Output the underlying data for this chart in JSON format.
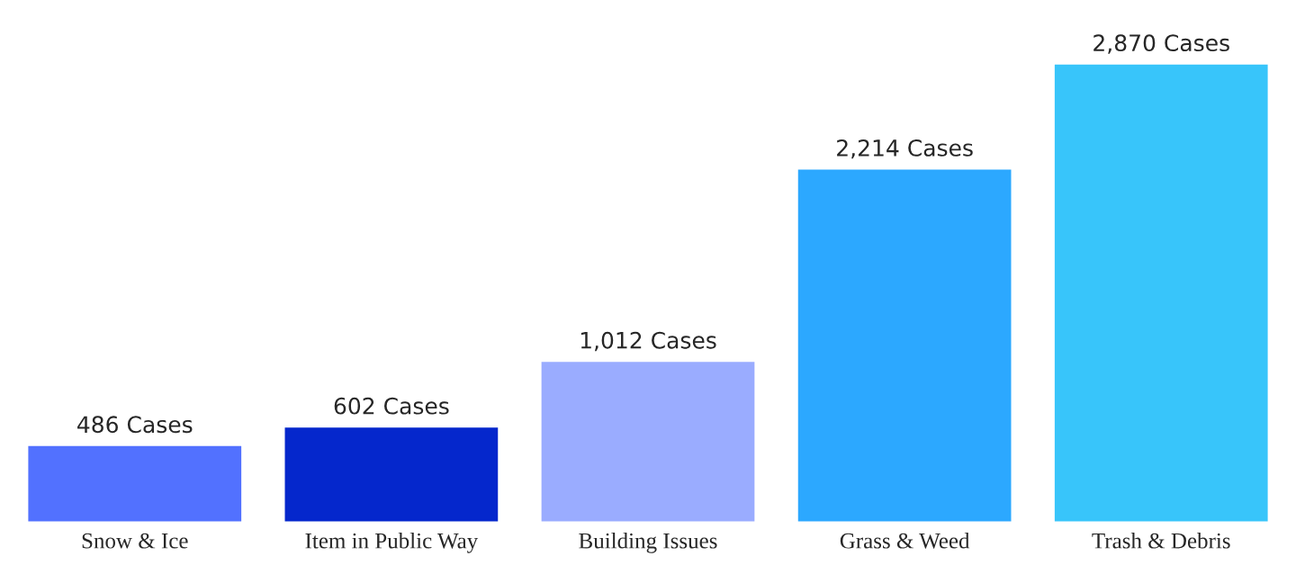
{
  "chart_data": {
    "type": "bar",
    "categories": [
      "Snow & Ice",
      "Item in Public Way",
      "Building Issues",
      "Grass & Weed",
      "Trash & Debris"
    ],
    "values": [
      486,
      602,
      1012,
      2214,
      2870
    ],
    "value_labels": [
      "486 Cases",
      "602 Cases",
      "1,012 Cases",
      "2,214 Cases",
      "2,870 Cases"
    ],
    "colors": [
      "#5271ff",
      "#0527cc",
      "#9aacff",
      "#2ca8ff",
      "#38c5fa"
    ],
    "grid": false,
    "legend": false
  }
}
